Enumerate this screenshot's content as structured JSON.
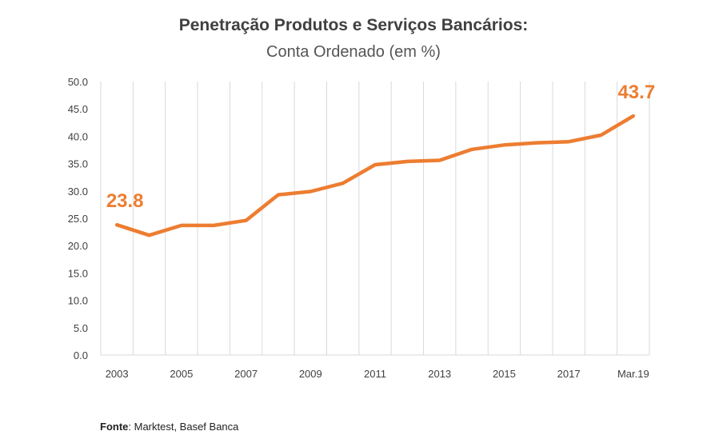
{
  "chart_data": {
    "type": "line",
    "title": "Penetração Produtos e Serviços Bancários:",
    "subtitle": "Conta Ordenado (em %)",
    "x_positions": [
      "2003",
      "2004",
      "2005",
      "2006",
      "2007",
      "2008",
      "2009",
      "2010",
      "2011",
      "2012",
      "2013",
      "2014",
      "2015",
      "2016",
      "2017",
      "2018",
      "Mar.19"
    ],
    "x_tick_labels": [
      "2003",
      "",
      "2005",
      "",
      "2007",
      "",
      "2009",
      "",
      "2011",
      "",
      "2013",
      "",
      "2015",
      "",
      "2017",
      "",
      "Mar.19"
    ],
    "series": [
      {
        "values": [
          23.8,
          21.9,
          23.7,
          23.7,
          24.6,
          29.3,
          29.9,
          31.4,
          34.8,
          35.4,
          35.6,
          37.6,
          38.4,
          38.8,
          39.0,
          40.2,
          43.7
        ]
      }
    ],
    "ylim": [
      0,
      50
    ],
    "y_ticks": [
      "0.0",
      "5.0",
      "10.0",
      "15.0",
      "20.0",
      "25.0",
      "30.0",
      "35.0",
      "40.0",
      "45.0",
      "50.0"
    ],
    "data_labels": [
      {
        "index": 0,
        "text": "23.8"
      },
      {
        "index": 16,
        "text": "43.7"
      }
    ],
    "grid": "vertical",
    "legend": "none",
    "line_color": "#ed7d31",
    "grid_color": "#d9d9d9",
    "source_label": "Fonte",
    "source_text": ": Marktest, Basef Banca"
  }
}
